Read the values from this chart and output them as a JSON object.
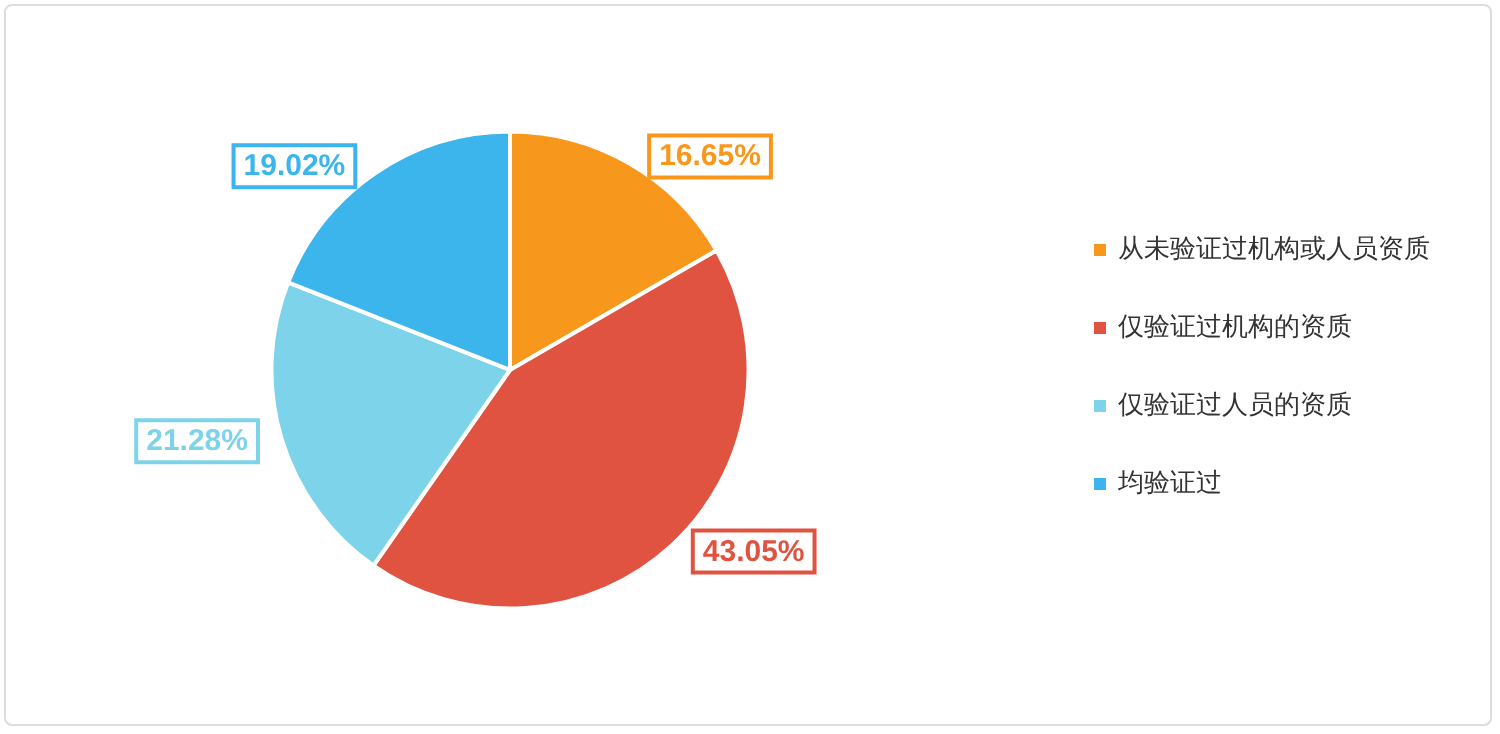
{
  "chart_data": {
    "type": "pie",
    "categories": [
      "从未验证过机构或人员资质",
      "仅验证过机构的资质",
      "仅验证过人员的资质",
      "均验证过"
    ],
    "values": [
      16.65,
      43.05,
      21.28,
      19.02
    ],
    "colors": [
      "#f7981d",
      "#e05340",
      "#7dd3ea",
      "#3cb4ec"
    ],
    "value_labels": [
      "16.65%",
      "43.05%",
      "21.28%",
      "19.02%"
    ],
    "legend": "right"
  }
}
